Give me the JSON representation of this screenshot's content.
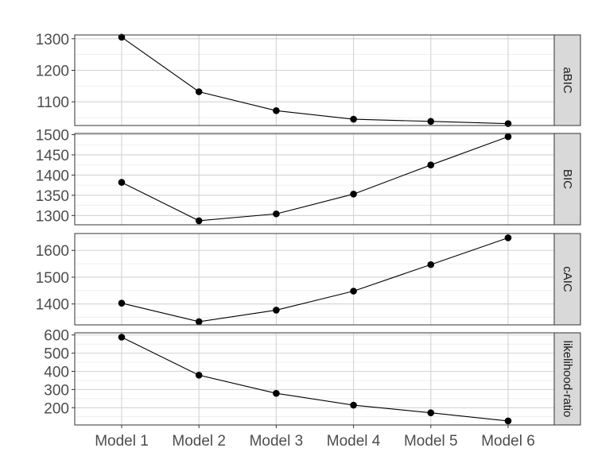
{
  "chart_data": {
    "type": "line",
    "layout": "faceted-vertical",
    "categories": [
      "Model 1",
      "Model 2",
      "Model 3",
      "Model 4",
      "Model 5",
      "Model 6"
    ],
    "xlabel": "",
    "ylabel": "",
    "title": "",
    "grid": true,
    "line_color": "#000000",
    "point_color": "#000000",
    "strip_fill": "#d9d9d9",
    "panels": [
      {
        "strip_label": "aBIC",
        "values": [
          1305,
          1132,
          1072,
          1045,
          1038,
          1031
        ],
        "ylim": [
          1025,
          1312
        ],
        "yticks": [
          1100,
          1200,
          1300
        ]
      },
      {
        "strip_label": "BIC",
        "values": [
          1382,
          1287,
          1304,
          1353,
          1425,
          1495
        ],
        "ylim": [
          1277,
          1503
        ],
        "yticks": [
          1300,
          1350,
          1400,
          1450,
          1500
        ]
      },
      {
        "strip_label": "cAIC",
        "values": [
          1403,
          1334,
          1377,
          1448,
          1547,
          1647
        ],
        "ylim": [
          1322,
          1663
        ],
        "yticks": [
          1400,
          1500,
          1600
        ]
      },
      {
        "strip_label": "likelihood-ratio",
        "values": [
          588,
          379,
          279,
          214,
          172,
          127
        ],
        "ylim": [
          105,
          612
        ],
        "yticks": [
          200,
          300,
          400,
          500,
          600
        ]
      }
    ]
  }
}
